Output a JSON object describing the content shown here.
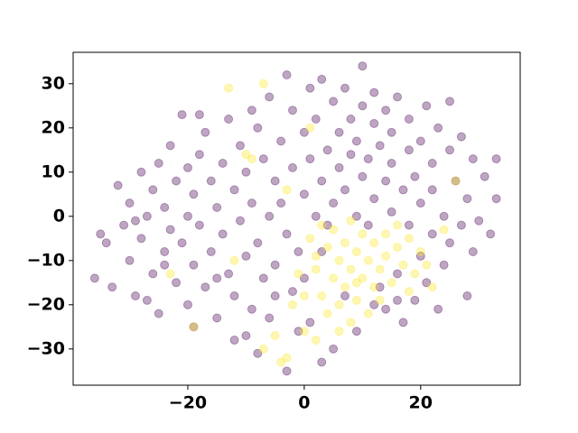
{
  "chart_data": {
    "type": "scatter",
    "xlim": [
      -39.7,
      37.1
    ],
    "ylim": [
      -38.2,
      37.1
    ],
    "xticks": [
      {
        "value": -20,
        "label": "−20"
      },
      0,
      20
    ],
    "yticks": [
      {
        "value": -30,
        "label": "−30"
      },
      {
        "value": -20,
        "label": "−20"
      },
      {
        "value": -10,
        "label": "−10"
      },
      0,
      10,
      20,
      30
    ],
    "series": [
      {
        "color": "#440154",
        "x": [
          -36,
          -34,
          -33,
          -32,
          -31,
          -30,
          -30,
          -29,
          -28,
          -28,
          -27,
          -26,
          -26,
          -25,
          -25,
          -24,
          -24,
          -23,
          -23,
          -22,
          -22,
          -21,
          -21,
          -20,
          -20,
          -20,
          -19,
          -19,
          -18,
          -18,
          -17,
          -17,
          -16,
          -16,
          -15,
          -15,
          -14,
          -14,
          -13,
          -13,
          -12,
          -12,
          -11,
          -11,
          -10,
          -10,
          -10,
          -9,
          -9,
          -8,
          -8,
          -7,
          -7,
          -6,
          -6,
          -5,
          -5,
          -5,
          -4,
          -4,
          -3,
          -3,
          -3,
          -2,
          -2,
          -1,
          0,
          0,
          0,
          1,
          1,
          2,
          2,
          3,
          3,
          4,
          4,
          5,
          5,
          6,
          6,
          7,
          7,
          8,
          8,
          9,
          9,
          10,
          10,
          10,
          11,
          11,
          12,
          12,
          12,
          13,
          13,
          14,
          14,
          14,
          15,
          15,
          15,
          16,
          16,
          17,
          17,
          18,
          18,
          18,
          19,
          19,
          20,
          20,
          20,
          21,
          21,
          22,
          22,
          22,
          23,
          23,
          24,
          24,
          25,
          25,
          25,
          26,
          27,
          27,
          28,
          28,
          29,
          29,
          30,
          31,
          32,
          33,
          33,
          -35,
          -27,
          -19,
          -12,
          -6,
          -2,
          1,
          5,
          9,
          12,
          3,
          -8,
          -15,
          -24,
          -29,
          -18,
          -9,
          3,
          7,
          16,
          -1
        ],
        "y": [
          -14,
          -6,
          -16,
          7,
          -2,
          -10,
          3,
          -18,
          -5,
          10,
          0,
          -13,
          6,
          12,
          -22,
          -8,
          2,
          16,
          -3,
          8,
          -15,
          23,
          -6,
          11,
          0,
          -20,
          5,
          -11,
          14,
          -2,
          19,
          -16,
          8,
          -8,
          2,
          -23,
          12,
          -4,
          22,
          -13,
          6,
          -18,
          16,
          -1,
          10,
          -9,
          -27,
          3,
          -21,
          20,
          -6,
          13,
          -14,
          27,
          0,
          8,
          -11,
          -18,
          17,
          3,
          32,
          -4,
          -35,
          11,
          24,
          -8,
          19,
          5,
          -14,
          29,
          13,
          0,
          22,
          8,
          31,
          15,
          -2,
          26,
          3,
          11,
          19,
          29,
          6,
          14,
          22,
          0,
          17,
          34,
          9,
          25,
          -2,
          13,
          21,
          4,
          28,
          16,
          -16,
          8,
          24,
          -21,
          1,
          12,
          19,
          -13,
          27,
          6,
          -24,
          15,
          -2,
          22,
          -19,
          9,
          3,
          17,
          -9,
          -15,
          25,
          12,
          -4,
          6,
          20,
          -21,
          0,
          -11,
          15,
          26,
          -6,
          8,
          -2,
          18,
          -18,
          4,
          13,
          -8,
          -1,
          9,
          -4,
          13,
          4,
          -4,
          -19,
          -25,
          -28,
          -23,
          -17,
          -24,
          -30,
          -26,
          -20,
          -8,
          -31,
          -14,
          -11,
          -1,
          23,
          24,
          -33,
          -18,
          -19,
          -26
        ]
      },
      {
        "color": "#fde725",
        "x": [
          -13,
          -7,
          -23,
          -19,
          -10,
          -3,
          -2,
          -5,
          -7,
          -3,
          -4,
          0,
          2,
          1,
          2,
          3,
          4,
          4,
          5,
          5,
          6,
          6,
          7,
          7,
          8,
          8,
          9,
          9,
          10,
          10,
          11,
          11,
          12,
          12,
          13,
          14,
          14,
          15,
          16,
          17,
          18,
          19,
          20,
          22,
          24,
          26,
          -12,
          0,
          3,
          8,
          2,
          6,
          -1,
          9,
          13,
          16,
          18,
          21,
          -9,
          1
        ],
        "y": [
          29,
          30,
          -13,
          -25,
          14,
          6,
          -20,
          -27,
          -30,
          -32,
          -33,
          -26,
          -28,
          -5,
          -12,
          -18,
          -7,
          -22,
          -14,
          -3,
          -10,
          -20,
          -6,
          -16,
          -12,
          -24,
          -8,
          -19,
          -4,
          -14,
          -10,
          -22,
          -6,
          -16,
          -12,
          -4,
          -9,
          -15,
          -7,
          -11,
          -5,
          -13,
          -8,
          -16,
          -3,
          8,
          -10,
          -18,
          -2,
          -1,
          -9,
          -26,
          -13,
          -15,
          -19,
          -2,
          -17,
          -11,
          13,
          20
        ]
      }
    ]
  }
}
